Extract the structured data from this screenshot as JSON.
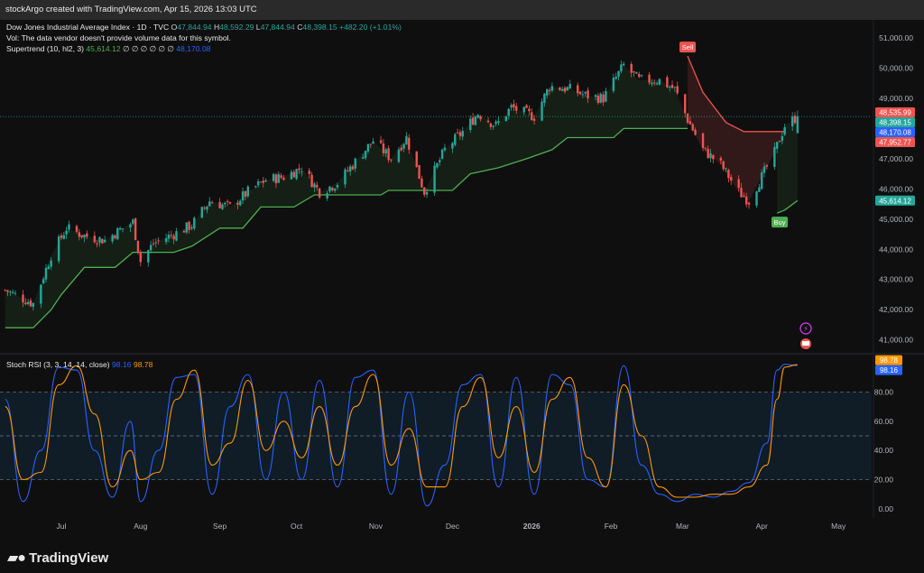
{
  "header": {
    "creator_line": "stockArgo created with TradingView.com, Apr 15, 2026 13:03 UTC"
  },
  "legend": {
    "symbol_line": "Dow Jones Industrial Average Index · 1D · TVC",
    "o_label": "O",
    "o_value": "47,844.94",
    "h_label": "H",
    "h_value": "48,592.29",
    "l_label": "L",
    "l_value": "47,844.94",
    "c_label": "C",
    "c_value": "48,398.15",
    "change": "+482.20 (+1.01%)",
    "vol_line": "Vol: The data vendor doesn't provide volume data for this symbol.",
    "supertrend_label": "Supertrend (10, hl2, 3)",
    "supertrend_value": "45,614.12",
    "supertrend_empties": "∅ ∅ ∅ ∅ ∅ ∅",
    "supertrend_value2": "48,170.08",
    "stoch_label": "Stoch RSI (3, 3, 14, 14, close)",
    "stoch_k": "98.16",
    "stoch_d": "98.78"
  },
  "colors": {
    "up": "#26a69a",
    "down": "#ef5350",
    "supertrend_up": "#4caf50",
    "supertrend_down": "#ef5350",
    "stoch_k": "#2962ff",
    "stoch_d": "#ff9800",
    "price_tag": "#26a69a",
    "blue_tag": "#2962ff",
    "red_tag": "#ef5350"
  },
  "chart_data": [
    {
      "type": "candlestick",
      "panel": "price",
      "title": "Dow Jones Industrial Average Index · 1D · TVC",
      "y_ticks": [
        "51,000.00",
        "50,000.00",
        "49,000.00",
        "48,000.00",
        "47,000.00",
        "46,000.00",
        "45,000.00",
        "44,000.00",
        "43,000.00",
        "42,000.00",
        "41,000.00"
      ],
      "y_tick_values": [
        51000,
        50000,
        49000,
        48000,
        47000,
        46000,
        45000,
        44000,
        43000,
        42000,
        41000
      ],
      "ylim": [
        40600,
        51600
      ],
      "x_labels": [
        "Jul",
        "Aug",
        "Sep",
        "Oct",
        "Nov",
        "Dec",
        "2026",
        "Feb",
        "Mar",
        "Apr",
        "May"
      ],
      "x_label_dates": [
        "2025-07-01",
        "2025-08-01",
        "2025-09-01",
        "2025-10-01",
        "2025-11-01",
        "2025-12-01",
        "2026-01-01",
        "2026-02-01",
        "2026-03-01",
        "2026-04-01",
        "2026-05-01"
      ],
      "xlim_dates": [
        "2025-06-07",
        "2026-05-14"
      ],
      "close_path": [
        [
          "2025-06-09",
          42650
        ],
        [
          "2025-06-20",
          42200
        ],
        [
          "2025-06-27",
          43800
        ],
        [
          "2025-07-03",
          44700
        ],
        [
          "2025-07-10",
          44450
        ],
        [
          "2025-07-18",
          44300
        ],
        [
          "2025-07-24",
          44650
        ],
        [
          "2025-07-29",
          44900
        ],
        [
          "2025-08-01",
          43600
        ],
        [
          "2025-08-06",
          44200
        ],
        [
          "2025-08-14",
          44500
        ],
        [
          "2025-08-21",
          44800
        ],
        [
          "2025-08-28",
          45600
        ],
        [
          "2025-09-05",
          45400
        ],
        [
          "2025-09-12",
          45900
        ],
        [
          "2025-09-19",
          46300
        ],
        [
          "2025-09-26",
          46400
        ],
        [
          "2025-10-03",
          46700
        ],
        [
          "2025-10-10",
          45900
        ],
        [
          "2025-10-17",
          46200
        ],
        [
          "2025-10-24",
          46900
        ],
        [
          "2025-10-31",
          47600
        ],
        [
          "2025-11-07",
          47000
        ],
        [
          "2025-11-13",
          47700
        ],
        [
          "2025-11-20",
          45900
        ],
        [
          "2025-11-28",
          47300
        ],
        [
          "2025-12-05",
          47900
        ],
        [
          "2025-12-11",
          48500
        ],
        [
          "2025-12-18",
          48100
        ],
        [
          "2025-12-24",
          48700
        ],
        [
          "2026-01-02",
          48400
        ],
        [
          "2026-01-08",
          49400
        ],
        [
          "2026-01-16",
          49300
        ],
        [
          "2026-01-22",
          49100
        ],
        [
          "2026-01-29",
          49000
        ],
        [
          "2026-02-06",
          50100
        ],
        [
          "2026-02-12",
          49600
        ],
        [
          "2026-02-20",
          49600
        ],
        [
          "2026-02-26",
          49300
        ],
        [
          "2026-03-03",
          48300
        ],
        [
          "2026-03-09",
          47300
        ],
        [
          "2026-03-16",
          46800
        ],
        [
          "2026-03-23",
          45900
        ],
        [
          "2026-03-27",
          45600
        ],
        [
          "2026-04-01",
          46400
        ],
        [
          "2026-04-06",
          47200
        ],
        [
          "2026-04-10",
          48100
        ],
        [
          "2026-04-15",
          48398
        ]
      ],
      "supertrend": [
        {
          "trend": "up",
          "points": [
            [
              "2025-06-09",
              41400
            ],
            [
              "2025-06-20",
              41400
            ],
            [
              "2025-06-27",
              42000
            ],
            [
              "2025-07-01",
              42500
            ],
            [
              "2025-07-10",
              43400
            ],
            [
              "2025-07-22",
              43400
            ],
            [
              "2025-07-29",
              43900
            ],
            [
              "2025-08-01",
              43900
            ],
            [
              "2025-08-14",
              43900
            ],
            [
              "2025-08-21",
              44100
            ],
            [
              "2025-09-01",
              44700
            ],
            [
              "2025-09-10",
              44700
            ],
            [
              "2025-09-17",
              45400
            ],
            [
              "2025-09-30",
              45400
            ],
            [
              "2025-10-08",
              45800
            ],
            [
              "2025-11-03",
              45800
            ],
            [
              "2025-11-06",
              45950
            ],
            [
              "2025-12-01",
              45950
            ],
            [
              "2025-12-08",
              46500
            ],
            [
              "2025-12-19",
              46700
            ],
            [
              "2025-12-30",
              47000
            ],
            [
              "2026-01-09",
              47300
            ],
            [
              "2026-01-15",
              47700
            ],
            [
              "2026-02-02",
              47700
            ],
            [
              "2026-02-06",
              48000
            ],
            [
              "2026-03-03",
              48000
            ]
          ]
        },
        {
          "trend": "down",
          "points": [
            [
              "2026-03-03",
              50400
            ],
            [
              "2026-03-09",
              49200
            ],
            [
              "2026-03-18",
              48200
            ],
            [
              "2026-03-25",
              47900
            ],
            [
              "2026-04-10",
              47900
            ]
          ]
        },
        {
          "trend": "up",
          "points": [
            [
              "2026-04-07",
              45200
            ],
            [
              "2026-04-10",
              45300
            ],
            [
              "2026-04-15",
              45614
            ]
          ]
        }
      ],
      "signals": [
        {
          "label": "Sell",
          "date": "2026-03-03",
          "value": 50700
        },
        {
          "label": "Buy",
          "date": "2026-04-08",
          "value": 44900
        }
      ],
      "price_tags": [
        {
          "label": "48,535.99",
          "value": 48536,
          "color": "red"
        },
        {
          "label": "48,398.15",
          "value": 48398,
          "color": "green"
        },
        {
          "label": "48,170.08",
          "value": 48170,
          "color": "blue"
        },
        {
          "label": "47,952.77",
          "value": 47953,
          "color": "red"
        },
        {
          "label": "45,614.12",
          "value": 45614,
          "color": "green"
        }
      ],
      "last_close": 48398.15
    },
    {
      "type": "line",
      "panel": "stoch_rsi",
      "title": "Stoch RSI (3, 3, 14, 14, close)",
      "ylim": [
        -5,
        105
      ],
      "y_ticks": [
        "80.00",
        "60.00",
        "40.00",
        "20.00",
        "0.00"
      ],
      "y_tick_values": [
        80,
        60,
        40,
        20,
        0
      ],
      "bands": {
        "upper": 80,
        "middle": 50,
        "lower": 20
      },
      "k_path": [
        [
          "2025-06-09",
          75
        ],
        [
          "2025-06-16",
          5
        ],
        [
          "2025-06-23",
          40
        ],
        [
          "2025-06-30",
          97
        ],
        [
          "2025-07-07",
          95
        ],
        [
          "2025-07-14",
          40
        ],
        [
          "2025-07-21",
          8
        ],
        [
          "2025-07-28",
          60
        ],
        [
          "2025-08-01",
          5
        ],
        [
          "2025-08-08",
          40
        ],
        [
          "2025-08-15",
          90
        ],
        [
          "2025-08-22",
          92
        ],
        [
          "2025-08-29",
          10
        ],
        [
          "2025-09-05",
          70
        ],
        [
          "2025-09-12",
          92
        ],
        [
          "2025-09-19",
          20
        ],
        [
          "2025-09-26",
          80
        ],
        [
          "2025-10-03",
          20
        ],
        [
          "2025-10-10",
          88
        ],
        [
          "2025-10-17",
          15
        ],
        [
          "2025-10-24",
          90
        ],
        [
          "2025-10-31",
          95
        ],
        [
          "2025-11-07",
          10
        ],
        [
          "2025-11-14",
          80
        ],
        [
          "2025-11-21",
          2
        ],
        [
          "2025-11-28",
          30
        ],
        [
          "2025-12-05",
          85
        ],
        [
          "2025-12-12",
          92
        ],
        [
          "2025-12-19",
          15
        ],
        [
          "2025-12-26",
          90
        ],
        [
          "2026-01-02",
          10
        ],
        [
          "2026-01-09",
          92
        ],
        [
          "2026-01-16",
          85
        ],
        [
          "2026-01-23",
          20
        ],
        [
          "2026-01-30",
          15
        ],
        [
          "2026-02-06",
          98
        ],
        [
          "2026-02-13",
          30
        ],
        [
          "2026-02-20",
          10
        ],
        [
          "2026-02-27",
          5
        ],
        [
          "2026-03-06",
          10
        ],
        [
          "2026-03-13",
          8
        ],
        [
          "2026-03-20",
          12
        ],
        [
          "2026-03-27",
          18
        ],
        [
          "2026-04-03",
          45
        ],
        [
          "2026-04-07",
          95
        ],
        [
          "2026-04-10",
          99
        ],
        [
          "2026-04-15",
          98.16
        ]
      ],
      "d_path": [
        [
          "2025-06-09",
          70
        ],
        [
          "2025-06-16",
          20
        ],
        [
          "2025-06-23",
          25
        ],
        [
          "2025-06-30",
          85
        ],
        [
          "2025-07-07",
          98
        ],
        [
          "2025-07-14",
          65
        ],
        [
          "2025-07-21",
          15
        ],
        [
          "2025-07-28",
          40
        ],
        [
          "2025-08-01",
          20
        ],
        [
          "2025-08-08",
          25
        ],
        [
          "2025-08-15",
          75
        ],
        [
          "2025-08-22",
          95
        ],
        [
          "2025-08-29",
          30
        ],
        [
          "2025-09-05",
          45
        ],
        [
          "2025-09-12",
          88
        ],
        [
          "2025-09-19",
          40
        ],
        [
          "2025-09-26",
          60
        ],
        [
          "2025-10-03",
          35
        ],
        [
          "2025-10-10",
          70
        ],
        [
          "2025-10-17",
          30
        ],
        [
          "2025-10-24",
          70
        ],
        [
          "2025-10-31",
          92
        ],
        [
          "2025-11-07",
          30
        ],
        [
          "2025-11-14",
          55
        ],
        [
          "2025-11-21",
          15
        ],
        [
          "2025-11-28",
          15
        ],
        [
          "2025-12-05",
          70
        ],
        [
          "2025-12-12",
          90
        ],
        [
          "2025-12-19",
          35
        ],
        [
          "2025-12-26",
          70
        ],
        [
          "2026-01-02",
          25
        ],
        [
          "2026-01-09",
          75
        ],
        [
          "2026-01-16",
          90
        ],
        [
          "2026-01-23",
          35
        ],
        [
          "2026-01-30",
          15
        ],
        [
          "2026-02-06",
          85
        ],
        [
          "2026-02-13",
          50
        ],
        [
          "2026-02-20",
          15
        ],
        [
          "2026-02-27",
          8
        ],
        [
          "2026-03-06",
          8
        ],
        [
          "2026-03-13",
          10
        ],
        [
          "2026-03-20",
          10
        ],
        [
          "2026-03-27",
          15
        ],
        [
          "2026-04-03",
          30
        ],
        [
          "2026-04-07",
          75
        ],
        [
          "2026-04-10",
          97
        ],
        [
          "2026-04-15",
          98.78
        ]
      ],
      "value_tags": [
        {
          "label": "98.78",
          "value": 98.78,
          "color": "orange"
        },
        {
          "label": "98.16",
          "value": 98.16,
          "color": "blue"
        }
      ]
    }
  ],
  "footer": {
    "brand": "TradingView"
  }
}
